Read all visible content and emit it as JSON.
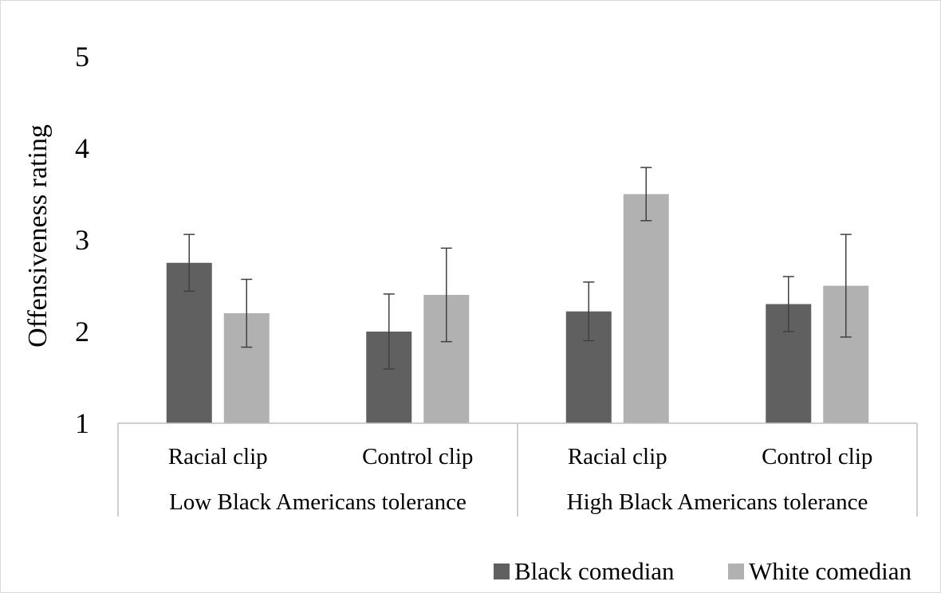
{
  "chart_data": {
    "type": "bar",
    "ylabel": "Offensiveness rating",
    "ylim": [
      1,
      5
    ],
    "yticks": [
      1,
      2,
      3,
      4,
      5
    ],
    "grid": false,
    "legend_position": "bottom-right",
    "groups": [
      {
        "label": "Low Black Americans tolerance",
        "categories": [
          "Racial clip",
          "Control clip"
        ]
      },
      {
        "label": "High Black Americans tolerance",
        "categories": [
          "Racial clip",
          "Control clip"
        ]
      }
    ],
    "series": [
      {
        "name": "Black comedian",
        "color": "#606060",
        "values": [
          2.75,
          2.0,
          2.22,
          2.3
        ],
        "error": [
          0.31,
          0.41,
          0.32,
          0.3
        ]
      },
      {
        "name": "White comedian",
        "color": "#b1b1b1",
        "values": [
          2.2,
          2.4,
          3.5,
          2.5
        ],
        "error": [
          0.37,
          0.51,
          0.29,
          0.56
        ]
      }
    ]
  }
}
